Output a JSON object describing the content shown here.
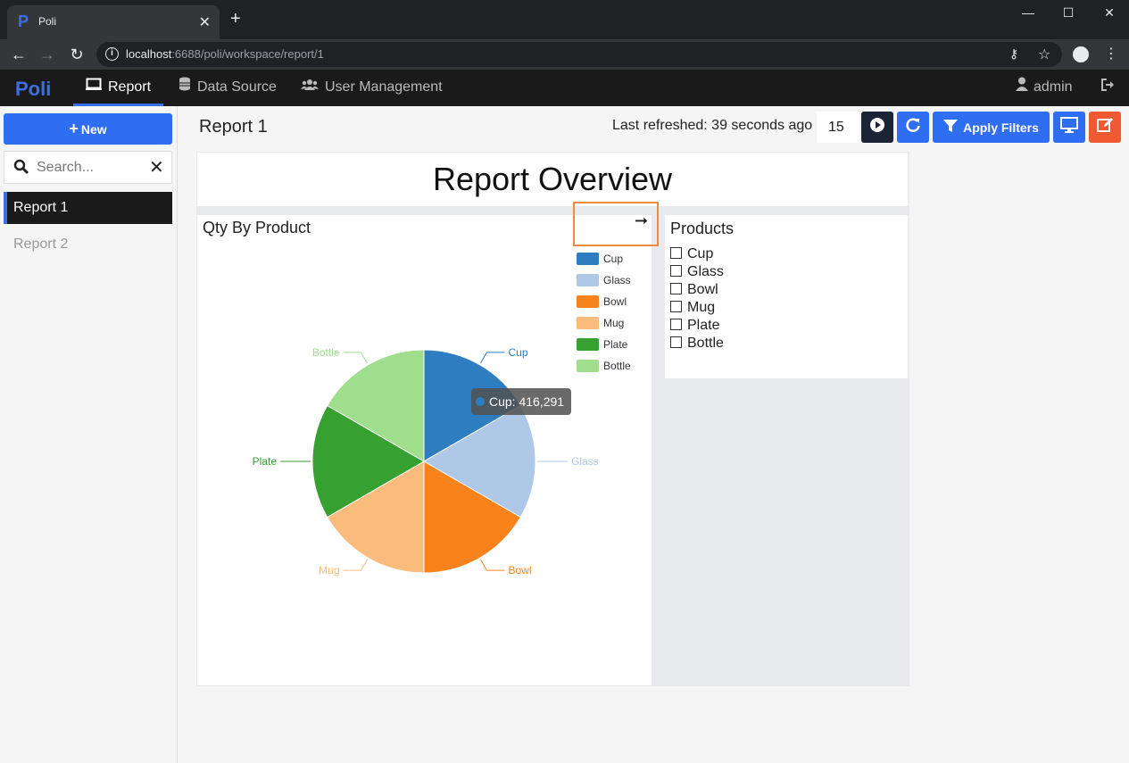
{
  "browser": {
    "tab_title": "Poli",
    "tab_favicon": "P",
    "url_host": "localhost",
    "url_rest": ":6688/poli/workspace/report/1"
  },
  "nav": {
    "brand": "Poli",
    "items": [
      {
        "label": "Report",
        "icon": "monitor-icon",
        "active": true
      },
      {
        "label": "Data Source",
        "icon": "database-icon",
        "active": false
      },
      {
        "label": "User Management",
        "icon": "users-icon",
        "active": false
      }
    ],
    "user": "admin"
  },
  "sidebar": {
    "new_label": "New",
    "search_placeholder": "Search...",
    "reports": [
      {
        "label": "Report 1",
        "active": true
      },
      {
        "label": "Report 2",
        "active": false
      }
    ]
  },
  "header": {
    "report_title": "Report 1",
    "last_refreshed": "Last refreshed: 39 seconds ago",
    "refresh_interval": "15",
    "apply_filters": "Apply Filters"
  },
  "canvas": {
    "title_widget": "Report Overview",
    "chart_widget_title": "Qty By Product",
    "filter_widget": {
      "title": "Products",
      "options": [
        "Cup",
        "Glass",
        "Bowl",
        "Mug",
        "Plate",
        "Bottle"
      ]
    }
  },
  "chart_data": {
    "type": "pie",
    "title": "Qty By Product",
    "legend_position": "top-right",
    "categories": [
      "Cup",
      "Glass",
      "Bowl",
      "Mug",
      "Plate",
      "Bottle"
    ],
    "values": [
      416291,
      416291,
      416291,
      416291,
      416291,
      416291
    ],
    "colors": [
      "#2e7dc1",
      "#afc8e8",
      "#f8821c",
      "#f9bc7c",
      "#36a030",
      "#9ede8c"
    ],
    "tooltip": "Cup: 416,291"
  }
}
